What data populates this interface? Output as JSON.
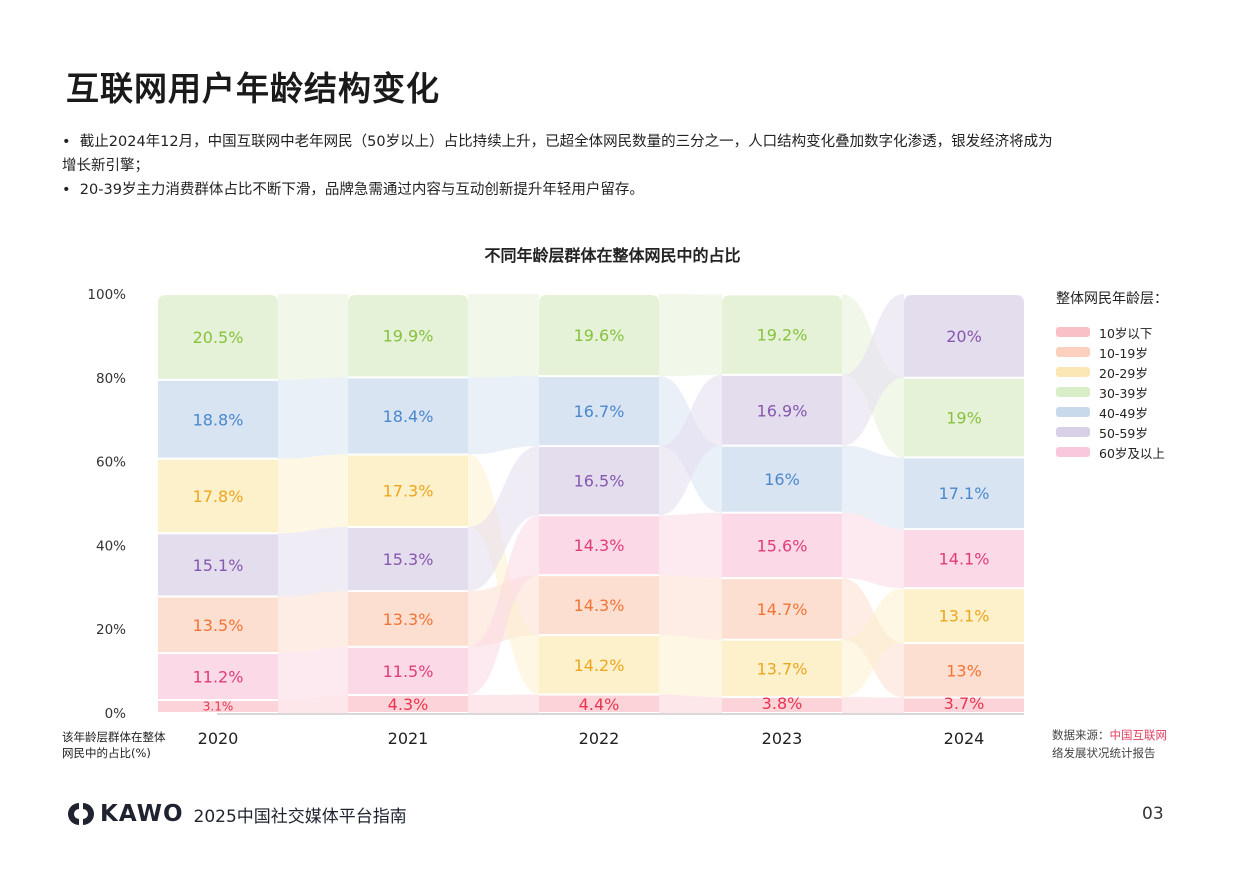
{
  "header": {
    "title": "互联网用户年龄结构变化"
  },
  "bullets": [
    "截止2024年12月，中国互联网中老年网民（50岁以上）占比持续上升，已超全体网民数量的三分之一，人口结构变化叠加数字化渗透，银发经济将成为增长新引擎；",
    "20-39岁主力消费群体占比不断下滑，品牌急需通过内容与互动创新提升年轻用户留存。"
  ],
  "chart_data": {
    "type": "bar",
    "stacked": true,
    "sorted_within_column": "ascending from bottom",
    "title": "不同年龄层群体在整体网民中的占比",
    "ylabel": "该年龄层群体在整体网民中的占比(%)",
    "ylim": [
      0,
      100
    ],
    "yticks": [
      "0%",
      "20%",
      "40%",
      "60%",
      "80%",
      "100%"
    ],
    "categories": [
      "2020",
      "2021",
      "2022",
      "2023",
      "2024"
    ],
    "legend_title": "整体网民年龄层：",
    "legend_position": "right",
    "series": [
      {
        "name": "10岁以下",
        "values": [
          3.1,
          4.3,
          4.4,
          3.8,
          3.7
        ],
        "labels": [
          "3.1%",
          "4.3%",
          "4.4%",
          "3.8%",
          "3.7%"
        ],
        "fill": "#fbd3d8",
        "swatch": "#f9c0c8",
        "text": "#e8344e"
      },
      {
        "name": "10-19岁",
        "values": [
          13.5,
          13.3,
          14.3,
          14.7,
          13
        ],
        "labels": [
          "13.5%",
          "13.3%",
          "14.3%",
          "14.7%",
          "13%"
        ],
        "fill": "#fcdfd0",
        "swatch": "#fbd0bf",
        "text": "#f07436"
      },
      {
        "name": "20-29岁",
        "values": [
          17.8,
          17.3,
          14.2,
          13.7,
          13.1
        ],
        "labels": [
          "17.8%",
          "17.3%",
          "14.2%",
          "13.7%",
          "13.1%"
        ],
        "fill": "#fdf1cc",
        "swatch": "#fbe6b6",
        "text": "#eda51c"
      },
      {
        "name": "30-39岁",
        "values": [
          20.5,
          19.9,
          19.6,
          19.2,
          19
        ],
        "labels": [
          "20.5%",
          "19.9%",
          "19.6%",
          "19.2%",
          "19%"
        ],
        "fill": "#e5f2d8",
        "swatch": "#d9edc8",
        "text": "#86c23c"
      },
      {
        "name": "40-49岁",
        "values": [
          18.8,
          18.4,
          16.7,
          16,
          17.1
        ],
        "labels": [
          "18.8%",
          "18.4%",
          "16.7%",
          "16%",
          "17.1%"
        ],
        "fill": "#d9e4f2",
        "swatch": "#c9d9ec",
        "text": "#4a88cc"
      },
      {
        "name": "50-59岁",
        "values": [
          15.1,
          15.3,
          16.5,
          16.9,
          20
        ],
        "labels": [
          "15.1%",
          "15.3%",
          "16.5%",
          "16.9%",
          "20%"
        ],
        "fill": "#e4ddee",
        "swatch": "#d8d0e6",
        "text": "#8658ae"
      },
      {
        "name": "60岁及以上",
        "values": [
          11.2,
          11.5,
          14.3,
          15.6,
          14.1
        ],
        "labels": [
          "11.2%",
          "11.5%",
          "14.3%",
          "15.6%",
          "14.1%"
        ],
        "fill": "#fbd9e6",
        "swatch": "#f9c8dc",
        "text": "#e03c7a"
      }
    ]
  },
  "source": {
    "label": "数据来源：",
    "value_line1": "中国互联网",
    "value_line2": "络发展状况统计报告"
  },
  "footer": {
    "brand": "KAWO",
    "guide": "2025中国社交媒体平台指南",
    "page": "03"
  }
}
